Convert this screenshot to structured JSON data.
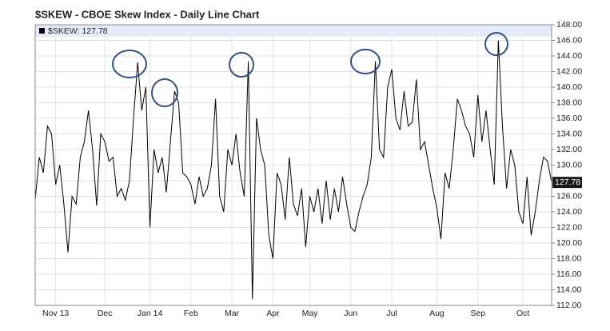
{
  "chart_data": {
    "type": "line",
    "title": "$SKEW - CBOE Skew Index - Daily Line Chart",
    "categories": [
      null,
      null,
      null,
      null,
      null,
      "Nov 13",
      null,
      null,
      null,
      null,
      null,
      null,
      null,
      null,
      null,
      null,
      null,
      "Dec",
      null,
      null,
      null,
      null,
      null,
      null,
      null,
      null,
      null,
      null,
      "Jan 14",
      null,
      null,
      null,
      null,
      null,
      null,
      null,
      null,
      null,
      "Feb",
      null,
      null,
      null,
      null,
      null,
      null,
      null,
      null,
      null,
      "Mar",
      null,
      null,
      null,
      null,
      null,
      null,
      null,
      null,
      null,
      "Apr",
      null,
      null,
      null,
      null,
      null,
      null,
      null,
      null,
      "May",
      null,
      null,
      null,
      null,
      null,
      null,
      null,
      null,
      null,
      "Jun",
      null,
      null,
      null,
      null,
      null,
      null,
      null,
      null,
      null,
      "Jul",
      null,
      null,
      null,
      null,
      null,
      null,
      null,
      null,
      null,
      null,
      "Aug",
      null,
      null,
      null,
      null,
      null,
      null,
      null,
      null,
      null,
      "Sep",
      null,
      null,
      null,
      null,
      null,
      null,
      null,
      null,
      null,
      null,
      "Oct",
      null,
      null,
      null,
      null,
      null,
      null,
      null
    ],
    "series": [
      {
        "name": "$SKEW: 127.78",
        "color": "#000000",
        "values": [
          125.5,
          131,
          129,
          135,
          134,
          127.5,
          130,
          125,
          118.8,
          126,
          125,
          131,
          133,
          137,
          132,
          124.8,
          134,
          133,
          130.5,
          131,
          126,
          127,
          125.5,
          128,
          136,
          143.2,
          137,
          140,
          122,
          132,
          129,
          131,
          126.5,
          133,
          139.5,
          138,
          129,
          128.5,
          127.5,
          125,
          128.5,
          126,
          127,
          130,
          138.5,
          126,
          124,
          132,
          130,
          134,
          129,
          126,
          143.3,
          112.8,
          136,
          132,
          130,
          121,
          118,
          129,
          127.5,
          123,
          131,
          125,
          123.5,
          127,
          119.5,
          126,
          124,
          127,
          122.5,
          128,
          123,
          127,
          124,
          128.5,
          125,
          122,
          121.5,
          124,
          126,
          127.5,
          131,
          143.3,
          132,
          131,
          140,
          142.3,
          136,
          134.5,
          139.5,
          135,
          135.5,
          141,
          132,
          133,
          130,
          127,
          124.5,
          120.5,
          129,
          127,
          132,
          138.5,
          137,
          135,
          134,
          131,
          139,
          133,
          137,
          132,
          127.5,
          146,
          135,
          127,
          132,
          130,
          124,
          122.5,
          128.5,
          121,
          124,
          128,
          131,
          130.5,
          127.78
        ]
      }
    ],
    "ylim": [
      112,
      148
    ],
    "yticks": [
      {
        "value": 112,
        "label": "112.00"
      },
      {
        "value": 114,
        "label": "114.00"
      },
      {
        "value": 116,
        "label": "116.00"
      },
      {
        "value": 118,
        "label": "118.00"
      },
      {
        "value": 120,
        "label": "120.00"
      },
      {
        "value": 122,
        "label": "122.00"
      },
      {
        "value": 124,
        "label": "124.00"
      },
      {
        "value": 126,
        "label": "126.00"
      },
      {
        "value": 128,
        "label": "128.00"
      },
      {
        "value": 130,
        "label": "130.00"
      },
      {
        "value": 132,
        "label": "132.00"
      },
      {
        "value": 134,
        "label": "134.00"
      },
      {
        "value": 136,
        "label": "136.00"
      },
      {
        "value": 138,
        "label": "138.00"
      },
      {
        "value": 140,
        "label": "140.00"
      },
      {
        "value": 142,
        "label": "142.00"
      },
      {
        "value": 144,
        "label": "144.00"
      },
      {
        "value": 146,
        "label": "146.00"
      },
      {
        "value": 148,
        "label": "148.00"
      }
    ],
    "grid": true
  }
}
